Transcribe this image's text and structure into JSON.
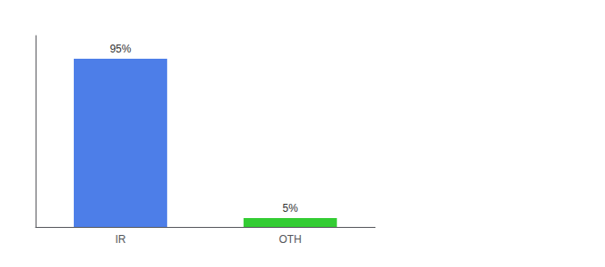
{
  "chart_data": {
    "type": "bar",
    "categories": [
      "IR",
      "OTH"
    ],
    "values": [
      95,
      5
    ],
    "value_labels": [
      "95%",
      "5%"
    ],
    "colors": [
      "#4d7ee8",
      "#33cc33"
    ],
    "ylim": [
      0,
      108
    ],
    "grid": false,
    "tick_labels": "x",
    "data_labels": true
  }
}
